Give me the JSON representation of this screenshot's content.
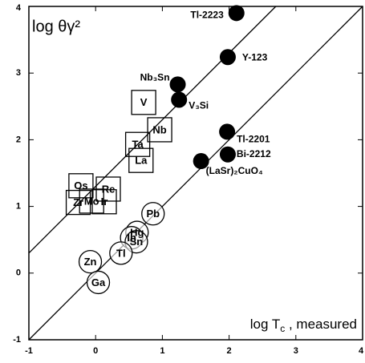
{
  "chart_data": {
    "type": "scatter",
    "ylabel": "log θγ²",
    "xlabel": [
      "log T",
      "c",
      " , measured"
    ],
    "xlim": [
      -1,
      4
    ],
    "ylim": [
      -1,
      4
    ],
    "xticks": [
      -1,
      0,
      1,
      2,
      3,
      4
    ],
    "yticks": [
      -1,
      0,
      1,
      2,
      3,
      4
    ],
    "reference_lines": [
      {
        "x": [
          -1,
          2.7
        ],
        "y": [
          0.3,
          4
        ]
      },
      {
        "x": [
          -1,
          4
        ],
        "y": [
          -1,
          4
        ]
      }
    ],
    "series": [
      {
        "marker": "filled-circle",
        "color": "#000000",
        "labels": [
          "Tl-2223",
          "Y-123",
          "Nb₃Sn",
          "V₃Si",
          "Tl-2201",
          "Bi-2212",
          "(LaSr)₂CuO₄"
        ],
        "x": [
          2.11,
          1.98,
          1.23,
          1.25,
          1.97,
          1.98,
          1.58
        ],
        "y": [
          3.9,
          3.24,
          2.83,
          2.6,
          2.12,
          1.78,
          1.68
        ]
      },
      {
        "marker": "square",
        "color": "#000000",
        "labels": [
          "V",
          "Nb",
          "Ta",
          "La",
          "Os",
          "Re",
          "Zr",
          "Mo",
          "Ir"
        ],
        "x": [
          0.72,
          0.96,
          0.63,
          0.68,
          -0.22,
          0.19,
          -0.26,
          -0.06,
          0.13
        ],
        "y": [
          2.56,
          2.15,
          1.93,
          1.69,
          1.31,
          1.26,
          1.06,
          1.08,
          1.07
        ]
      },
      {
        "marker": "open-circle",
        "color": "#000000",
        "labels": [
          "Pb",
          "Hg",
          "In",
          "Sn",
          "Tl",
          "Zn",
          "Ga"
        ],
        "x": [
          0.86,
          0.62,
          0.54,
          0.61,
          0.38,
          -0.08,
          0.04
        ],
        "y": [
          0.89,
          0.61,
          0.53,
          0.47,
          0.3,
          0.17,
          -0.14
        ]
      }
    ]
  }
}
